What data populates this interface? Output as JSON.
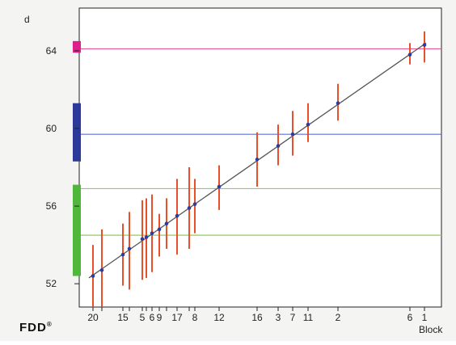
{
  "chart_data": {
    "type": "scatter",
    "ylabel": "d",
    "xlabel": "Block",
    "ylim": [
      50.8,
      66.2
    ],
    "yticks": [
      52,
      56,
      60,
      64
    ],
    "brand": "FDD",
    "brand_mark": "®",
    "blocks": [
      {
        "label": "20",
        "order": 1,
        "d": 52.4,
        "lo": 50.8,
        "hi": 54.0
      },
      {
        "label": "",
        "order": 2,
        "d": 52.7,
        "lo": 50.8,
        "hi": 54.8
      },
      {
        "label": "15",
        "order": 3,
        "d": 53.5,
        "lo": 51.9,
        "hi": 55.1
      },
      {
        "label": "",
        "order": 4,
        "d": 53.8,
        "lo": 51.7,
        "hi": 55.7
      },
      {
        "label": "5",
        "order": 5,
        "d": 54.3,
        "lo": 52.2,
        "hi": 56.3
      },
      {
        "label": "",
        "order": 6,
        "d": 54.4,
        "lo": 52.3,
        "hi": 56.4
      },
      {
        "label": "6",
        "order": 7,
        "d": 54.6,
        "lo": 52.6,
        "hi": 56.6
      },
      {
        "label": "9",
        "order": 8,
        "d": 54.8,
        "lo": 53.4,
        "hi": 55.6
      },
      {
        "label": "",
        "order": 9,
        "d": 55.1,
        "lo": 53.8,
        "hi": 56.4
      },
      {
        "label": "17",
        "order": 10,
        "d": 55.5,
        "lo": 53.5,
        "hi": 57.4
      },
      {
        "label": "",
        "order": 11,
        "d": 55.9,
        "lo": 53.8,
        "hi": 58.0
      },
      {
        "label": "8",
        "order": 12,
        "d": 56.1,
        "lo": 54.6,
        "hi": 57.4
      },
      {
        "label": "12",
        "order": 13,
        "d": 57.0,
        "lo": 55.8,
        "hi": 58.1
      },
      {
        "label": "16",
        "order": 14,
        "d": 58.4,
        "lo": 57.0,
        "hi": 59.8
      },
      {
        "label": "3",
        "order": 15,
        "d": 59.1,
        "lo": 58.1,
        "hi": 60.2
      },
      {
        "label": "7",
        "order": 16,
        "d": 59.7,
        "lo": 58.6,
        "hi": 60.9
      },
      {
        "label": "11",
        "order": 17,
        "d": 60.2,
        "lo": 59.3,
        "hi": 61.3
      },
      {
        "label": "2",
        "order": 18,
        "d": 61.3,
        "lo": 60.4,
        "hi": 62.3
      },
      {
        "label": "6",
        "order": 19,
        "d": 63.8,
        "lo": 63.3,
        "hi": 64.4
      },
      {
        "label": "1",
        "order": 20,
        "d": 64.3,
        "lo": 63.4,
        "hi": 65.0
      }
    ],
    "trend_line": {
      "d_start": 52.3,
      "d_end": 64.4
    },
    "reference_lines": [
      {
        "name": "pink",
        "d": 64.1,
        "color": "#e8559a"
      },
      {
        "name": "blue",
        "d": 59.7,
        "color": "#5c6ee0"
      },
      {
        "name": "green-upper",
        "d": 56.9,
        "color": "#8ccf5a"
      },
      {
        "name": "green-lower",
        "d": 54.5,
        "color": "#8ccf5a"
      }
    ],
    "range_bars": [
      {
        "name": "pink",
        "from": 63.9,
        "to": 64.5,
        "color": "#e0208a"
      },
      {
        "name": "blue",
        "from": 58.3,
        "to": 61.3,
        "color": "#2b3a9a"
      },
      {
        "name": "green",
        "from": 52.4,
        "to": 57.1,
        "color": "#4fb83a"
      }
    ],
    "colors": {
      "error_bar": "#e8502a",
      "point": "#2c3ca0",
      "trend": "#555555",
      "axis": "#222222"
    }
  }
}
